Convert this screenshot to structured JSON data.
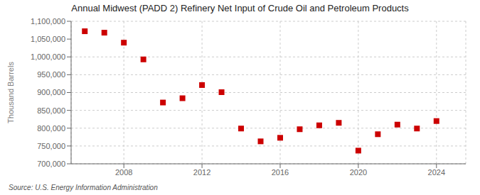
{
  "chart_data": {
    "type": "scatter",
    "title": "Annual Midwest (PADD 2) Refinery Net Input of Crude Oil and Petroleum Products",
    "ylabel": "Thousand Barrels",
    "annotations": [
      "Source: U.S. Energy Information Administration"
    ],
    "color": "#cc0000",
    "marker": "square",
    "grid": true,
    "x": [
      2006,
      2007,
      2008,
      2009,
      2010,
      2011,
      2012,
      2013,
      2014,
      2015,
      2016,
      2017,
      2018,
      2019,
      2020,
      2021,
      2022,
      2023,
      2024
    ],
    "values": [
      1072000,
      1068000,
      1040000,
      993000,
      872000,
      884000,
      921000,
      901000,
      799000,
      763000,
      773000,
      797000,
      808000,
      815000,
      737000,
      783000,
      810000,
      799000,
      820000
    ],
    "xlim": [
      2005.3,
      2025.5
    ],
    "xticks": [
      2008,
      2012,
      2016,
      2020,
      2024
    ],
    "ylim": [
      700000,
      1100000
    ],
    "yticks": [
      {
        "value": 700000,
        "label": "700,000"
      },
      {
        "value": 750000,
        "label": "750,000"
      },
      {
        "value": 800000,
        "label": "800,000"
      },
      {
        "value": 850000,
        "label": "850,000"
      },
      {
        "value": 900000,
        "label": "900,000"
      },
      {
        "value": 950000,
        "label": "950,000"
      },
      {
        "value": 1000000,
        "label": "1,000,000"
      },
      {
        "value": 1050000,
        "label": "1,050,000"
      },
      {
        "value": 1100000,
        "label": "1,100,000"
      }
    ]
  }
}
